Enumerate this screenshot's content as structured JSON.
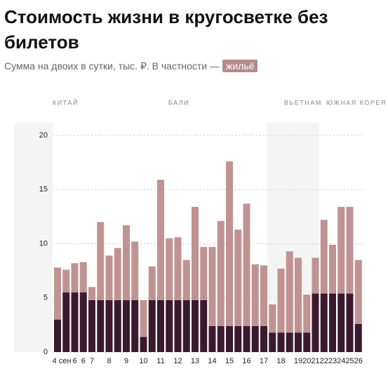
{
  "chart_data": {
    "type": "stacked_bar",
    "title": "Стоимость жизни в кругосветке без билетов",
    "subtitle": "Сумма на двоих в сутки, тыс. ₽. В частности —",
    "regions": [
      "КИТАЙ",
      "БАЛИ",
      "ВЬЕТНАМ",
      "ЮЖНАЯ КОРЕЯ"
    ],
    "categories": [
      "4 сен",
      null,
      "6",
      "6",
      "7",
      null,
      "8",
      null,
      "9",
      null,
      "10",
      null,
      "11",
      null,
      "12",
      null,
      "13",
      null,
      "14",
      null,
      "15",
      null,
      "16",
      null,
      "17",
      null,
      "18",
      null,
      "19",
      "20",
      "21",
      "22",
      "23",
      "24",
      "25",
      "26"
    ],
    "series": [
      {
        "name": "жильё",
        "color": "#3b1a2e",
        "values": [
          3.0,
          5.5,
          5.5,
          5.5,
          4.8,
          4.8,
          4.8,
          4.8,
          4.8,
          4.8,
          1.4,
          4.8,
          4.8,
          4.8,
          4.8,
          4.8,
          4.8,
          4.8,
          2.4,
          2.4,
          2.4,
          2.4,
          2.4,
          2.4,
          2.4,
          1.8,
          1.8,
          1.8,
          1.8,
          1.8,
          5.4,
          5.4,
          5.4,
          5.4,
          5.4,
          2.6
        ]
      },
      {
        "color": "#c09393",
        "values": [
          4.8,
          2.1,
          2.7,
          2.8,
          1.2,
          7.2,
          4.1,
          4.8,
          6.9,
          5.4,
          3.4,
          3.1,
          11.1,
          5.7,
          5.8,
          3.7,
          8.6,
          4.9,
          7.3,
          9.7,
          15.2,
          8.9,
          11.3,
          5.7,
          5.6,
          2.6,
          5.9,
          7.5,
          6.9,
          3.5,
          3.3,
          6.8,
          4.5,
          8.0,
          8.0,
          5.9
        ]
      }
    ],
    "ylim": [
      0,
      20
    ],
    "yticks": [
      0,
      5,
      10,
      15,
      20
    ],
    "grid": true
  }
}
